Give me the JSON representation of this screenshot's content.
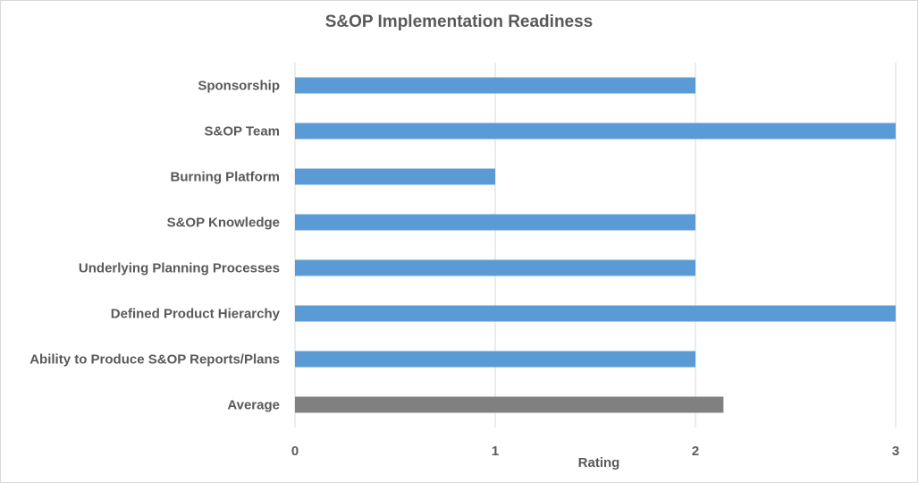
{
  "chart_data": {
    "type": "bar",
    "orientation": "horizontal",
    "title": "S&OP Implementation Readiness",
    "xlabel": "Rating",
    "ylabel": "",
    "xlim": [
      0,
      3
    ],
    "ticks": [
      "0",
      "1",
      "2",
      "3"
    ],
    "grid": true,
    "legend": "none",
    "categories": [
      "Sponsorship",
      "S&OP Team",
      "Burning Platform",
      "S&OP Knowledge",
      "Underlying Planning Processes",
      "Defined Product Hierarchy",
      "Ability to Produce S&OP Reports/Plans",
      "Average"
    ],
    "values": [
      2,
      3,
      1,
      2,
      2,
      3,
      2,
      2.14
    ],
    "colors": {
      "bar": "#5b9bd5",
      "average": "#808080",
      "grid": "#d9d9d9",
      "text": "#595959"
    }
  }
}
